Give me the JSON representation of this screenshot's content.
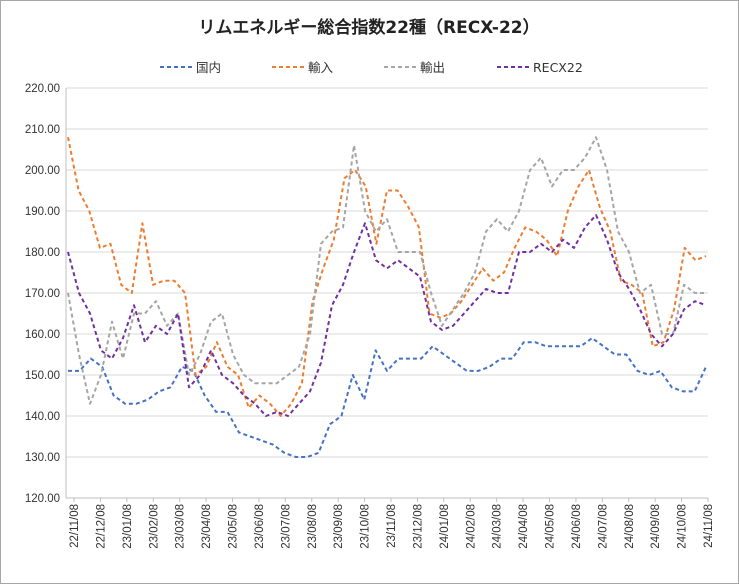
{
  "chart_data": {
    "type": "line",
    "title": "リムエネルギー総合指数22種（RECX-22）",
    "xlabel": "",
    "ylabel": "",
    "ylim": [
      120,
      220
    ],
    "y_ticks": [
      "120.00",
      "130.00",
      "140.00",
      "150.00",
      "160.00",
      "170.00",
      "180.00",
      "190.00",
      "200.00",
      "210.00",
      "220.00"
    ],
    "y_tick_values": [
      120,
      130,
      140,
      150,
      160,
      170,
      180,
      190,
      200,
      210,
      220
    ],
    "x_ticks": [
      "22/11/08",
      "22/12/08",
      "23/01/08",
      "23/02/08",
      "23/03/08",
      "23/04/08",
      "23/05/08",
      "23/06/08",
      "23/07/08",
      "23/08/08",
      "23/09/08",
      "23/10/08",
      "23/11/08",
      "23/12/08",
      "24/01/08",
      "24/02/08",
      "24/03/08",
      "24/04/08",
      "24/05/08",
      "24/06/08",
      "24/07/08",
      "24/08/08",
      "24/09/08",
      "24/10/08",
      "24/11/08"
    ],
    "grid": true,
    "legend_position": "top",
    "series": [
      {
        "name": "国内",
        "color": "#4472c4",
        "values": [
          151,
          151,
          154,
          152,
          145,
          143,
          143,
          144,
          146,
          147,
          152,
          151,
          145,
          141,
          141,
          136,
          135,
          134,
          133,
          131,
          130,
          130,
          131,
          138,
          140,
          150,
          144,
          156,
          151,
          154,
          154,
          154,
          157,
          155,
          153,
          151,
          151,
          152,
          154,
          154,
          158,
          158,
          157,
          157,
          157,
          157,
          159,
          157,
          155,
          155,
          151,
          150,
          151,
          147,
          146,
          146,
          152
        ]
      },
      {
        "name": "輸入",
        "color": "#ed7d31",
        "values": [
          208,
          195,
          190,
          181,
          182,
          172,
          170,
          187,
          172,
          173,
          173,
          170,
          150,
          152,
          158,
          152,
          150,
          142,
          145,
          143,
          140,
          143,
          148,
          168,
          176,
          183,
          198,
          200,
          196,
          182,
          195,
          195,
          191,
          186,
          165,
          164,
          165,
          168,
          172,
          176,
          173,
          175,
          181,
          186,
          185,
          183,
          179,
          190,
          196,
          200,
          191,
          185,
          173,
          172,
          170,
          157,
          158,
          166,
          181,
          178,
          179
        ]
      },
      {
        "name": "輸出",
        "color": "#a5a5a5",
        "values": [
          170,
          155,
          143,
          150,
          163,
          154,
          165,
          165,
          168,
          162,
          165,
          150,
          155,
          163,
          165,
          155,
          150,
          148,
          148,
          148,
          150,
          152,
          160,
          182,
          185,
          186,
          206,
          190,
          185,
          188,
          180,
          180,
          180,
          170,
          162,
          166,
          170,
          175,
          185,
          188,
          185,
          190,
          200,
          203,
          196,
          200,
          200,
          203,
          208,
          200,
          185,
          180,
          170,
          172,
          160,
          160,
          172,
          170,
          170
        ]
      },
      {
        "name": "RECX22",
        "color": "#7030a0",
        "values": [
          180,
          170,
          165,
          156,
          154,
          159,
          167,
          158,
          162,
          160,
          165,
          147,
          150,
          156,
          150,
          148,
          145,
          143,
          140,
          141,
          140,
          143,
          146,
          153,
          167,
          172,
          180,
          187,
          178,
          176,
          178,
          176,
          174,
          163,
          161,
          162,
          165,
          168,
          171,
          170,
          170,
          180,
          180,
          182,
          180,
          183,
          181,
          186,
          189,
          183,
          175,
          171,
          166,
          160,
          157,
          160,
          166,
          168,
          167
        ]
      }
    ]
  }
}
